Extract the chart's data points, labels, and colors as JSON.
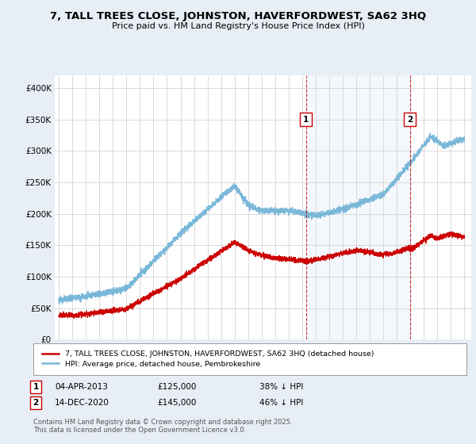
{
  "title": "7, TALL TREES CLOSE, JOHNSTON, HAVERFORDWEST, SA62 3HQ",
  "subtitle": "Price paid vs. HM Land Registry's House Price Index (HPI)",
  "background_color": "#e8eef5",
  "plot_bg_color": "#ffffff",
  "hpi_color": "#7ab8d9",
  "price_color": "#cc0000",
  "sale1_x": 2013.27,
  "sale1_y": 125000,
  "sale2_x": 2020.96,
  "sale2_y": 145000,
  "ann1_label": "1",
  "ann2_label": "2",
  "ann_y": 350000,
  "legend_line1": "7, TALL TREES CLOSE, JOHNSTON, HAVERFORDWEST, SA62 3HQ (detached house)",
  "legend_line2": "HPI: Average price, detached house, Pembrokeshire",
  "table_row1_label": "1",
  "table_row1_date": "04-APR-2013",
  "table_row1_price": "£125,000",
  "table_row1_pct": "38% ↓ HPI",
  "table_row2_label": "2",
  "table_row2_date": "14-DEC-2020",
  "table_row2_price": "£145,000",
  "table_row2_pct": "46% ↓ HPI",
  "footnote": "Contains HM Land Registry data © Crown copyright and database right 2025.\nThis data is licensed under the Open Government Licence v3.0.",
  "ylim": [
    0,
    420000
  ],
  "xlim": [
    1994.7,
    2025.5
  ],
  "yticks": [
    0,
    50000,
    100000,
    150000,
    200000,
    250000,
    300000,
    350000,
    400000
  ]
}
